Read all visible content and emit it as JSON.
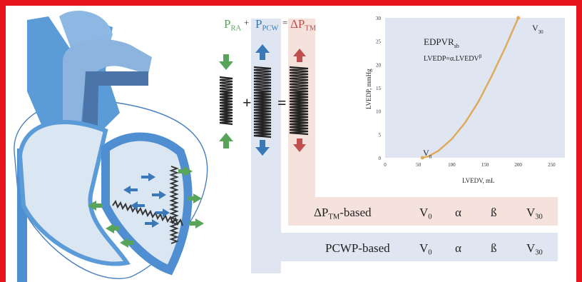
{
  "equation": {
    "pra_main": "P",
    "pra_sub": "RA",
    "plus": "+",
    "pcw_main": "P",
    "pcw_sub": "PCW",
    "equals": "=",
    "tm_main": "ΔP",
    "tm_sub": "TM"
  },
  "colors": {
    "green": "#58a45b",
    "blue": "#3a78b8",
    "red": "#c0504d",
    "curve": "#e0aa5c",
    "blue_band": "#dfe6f1",
    "pink_band": "#f6e2dc",
    "frame": "#e8141c"
  },
  "chart_data": {
    "type": "line",
    "xlabel": "LVEDV, mL",
    "ylabel": "LVEDP, mmHg",
    "xlim": [
      0,
      270
    ],
    "ylim": [
      0,
      30
    ],
    "xticks": [
      0,
      50,
      100,
      150,
      200,
      250
    ],
    "yticks": [
      0,
      5,
      10,
      15,
      20,
      25,
      30
    ],
    "grid": false,
    "series": [
      {
        "x": [
          56,
          65,
          80,
          100,
          120,
          140,
          160,
          180,
          200
        ],
        "y": [
          0,
          0.3,
          1.5,
          4,
          7.5,
          12,
          17.5,
          23.5,
          30
        ]
      }
    ],
    "points": [
      {
        "label": "V0",
        "x": 56,
        "y": 0
      },
      {
        "label": "V30",
        "x": 200,
        "y": 30
      }
    ],
    "annotations": {
      "edpvr_main": "EDPVR",
      "edpvr_sub": "sb",
      "formula_main": "LVEDP=α.LVEDV",
      "formula_sup": "β",
      "v0_main": "V",
      "v0_sub": "0",
      "v30_main": "V",
      "v30_sub": "30"
    }
  },
  "rows": [
    {
      "label_main": "ΔP",
      "label_sub": "TM",
      "label_suffix": "-based",
      "params": [
        {
          "main": "V",
          "sub": "0"
        },
        {
          "main": "α"
        },
        {
          "main": "ß"
        },
        {
          "main": "V",
          "sub": "30"
        }
      ]
    },
    {
      "label_main": "PCWP-based",
      "params": [
        {
          "main": "V",
          "sub": "0"
        },
        {
          "main": "α"
        },
        {
          "main": "ß"
        },
        {
          "main": "V",
          "sub": "30"
        }
      ]
    }
  ]
}
